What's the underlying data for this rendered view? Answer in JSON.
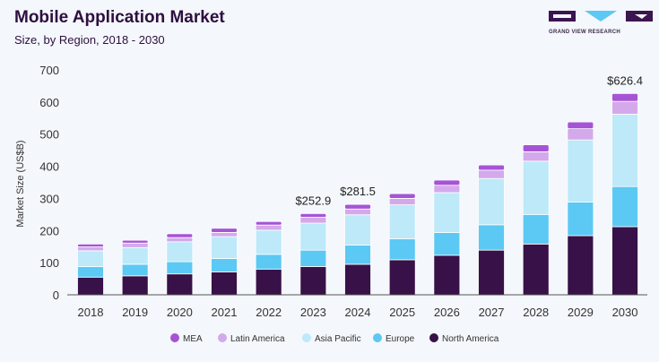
{
  "header": {
    "title": "Mobile Application Market",
    "subtitle": "Size, by Region, 2018 - 2030",
    "logo_text": "GRAND VIEW RESEARCH"
  },
  "chart_data": {
    "type": "bar",
    "stacked": true,
    "title": "Mobile Application Market",
    "subtitle": "Size, by Region, 2018 - 2030",
    "ylabel": "Market Size (US$B)",
    "xlabel": "",
    "ylim": [
      0,
      700
    ],
    "yticks": [
      0,
      100,
      200,
      300,
      400,
      500,
      600,
      700
    ],
    "grid": false,
    "legend": "bottom",
    "categories": [
      "2018",
      "2019",
      "2020",
      "2021",
      "2022",
      "2023",
      "2024",
      "2025",
      "2026",
      "2027",
      "2028",
      "2029",
      "2030"
    ],
    "series": [
      {
        "name": "North America",
        "color": "#371148",
        "values": [
          55,
          59,
          65,
          71,
          80,
          88,
          95,
          109,
          123,
          139,
          158,
          184,
          212
        ]
      },
      {
        "name": "Europe",
        "color": "#5bc9f3",
        "values": [
          33,
          36,
          38,
          42,
          46,
          51,
          60,
          65,
          71,
          79,
          92,
          105,
          125
        ]
      },
      {
        "name": "Asia Pacific",
        "color": "#bde9f8",
        "values": [
          49,
          52,
          62,
          68,
          75,
          84,
          94,
          106,
          124,
          144,
          166,
          193,
          225
        ]
      },
      {
        "name": "Latin America",
        "color": "#d4a9ec",
        "values": [
          12,
          14,
          13,
          13,
          16,
          18,
          18,
          20,
          23,
          26,
          29,
          35,
          40
        ]
      },
      {
        "name": "MEA",
        "color": "#a654d6",
        "values": [
          9,
          9,
          12,
          13,
          11,
          11.9,
          14.5,
          15,
          16,
          16,
          22,
          21,
          24.4
        ]
      }
    ],
    "data_labels": [
      {
        "category": "2023",
        "text": "$252.9"
      },
      {
        "category": "2024",
        "text": "$281.5"
      },
      {
        "category": "2030",
        "text": "$626.4"
      }
    ],
    "legend_order": [
      "MEA",
      "Latin America",
      "Asia Pacific",
      "Europe",
      "North America"
    ]
  }
}
